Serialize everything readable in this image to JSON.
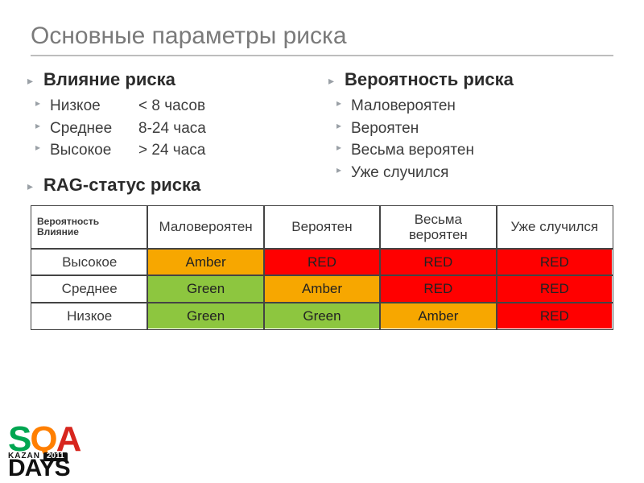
{
  "title": "Основные параметры риска",
  "impact": {
    "heading": "Влияние риска",
    "rows": [
      {
        "label": "Низкое",
        "value": "< 8 часов"
      },
      {
        "label": "Среднее",
        "value": "8-24 часа"
      },
      {
        "label": "Высокое",
        "value": "> 24 часа"
      }
    ]
  },
  "probability": {
    "heading": "Вероятность риска",
    "items": [
      "Маловероятен",
      "Вероятен",
      "Весьма вероятен",
      "Уже случился"
    ]
  },
  "rag": {
    "heading": "RAG-статус риска",
    "corner_top": "Вероятность",
    "corner_bottom": "Влияние",
    "col_headers": [
      "Маловероятен",
      "Вероятен",
      "Весьма вероятен",
      "Уже случился"
    ],
    "row_headers": [
      "Высокое",
      "Среднее",
      "Низкое"
    ],
    "cells": [
      [
        "Amber",
        "RED",
        "RED",
        "RED"
      ],
      [
        "Green",
        "Amber",
        "RED",
        "RED"
      ],
      [
        "Green",
        "Green",
        "Amber",
        "RED"
      ]
    ],
    "palette": {
      "Green": "#8dc63f",
      "Amber": "#f7a700",
      "RED": "#ff0000"
    },
    "text_color": {
      "Green": "#222222",
      "Amber": "#222222",
      "RED": "#222222"
    }
  },
  "logo": {
    "sqa": "SQA",
    "kazan": "KAZAN",
    "year": "2011",
    "days": "DAYS"
  }
}
